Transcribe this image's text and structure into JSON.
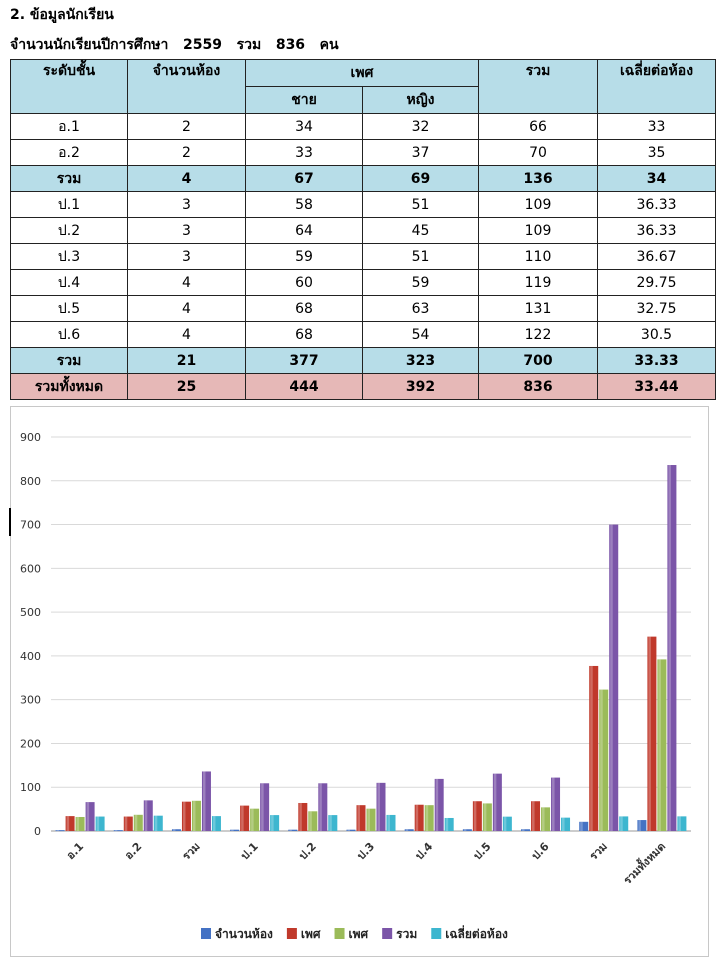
{
  "heading": "2. ข้อมูลนักเรียน",
  "subheading": "จำนวนนักเรียนปีการศึกษา   2559   รวม   836   คน",
  "table": {
    "headers": {
      "level": "ระดับชั้น",
      "rooms": "จำนวนห้อง",
      "gender": "เพศ",
      "male": "ชาย",
      "female": "หญิง",
      "total": "รวม",
      "avg": "เฉลี่ยต่อห้อง"
    },
    "rows": [
      {
        "level": "อ.1",
        "rooms": "2",
        "male": "34",
        "female": "32",
        "total": "66",
        "avg": "33"
      },
      {
        "level": "อ.2",
        "rooms": "2",
        "male": "33",
        "female": "37",
        "total": "70",
        "avg": "35"
      },
      {
        "level": "รวม",
        "rooms": "4",
        "male": "67",
        "female": "69",
        "total": "136",
        "avg": "34"
      },
      {
        "level": "ป.1",
        "rooms": "3",
        "male": "58",
        "female": "51",
        "total": "109",
        "avg": "36.33"
      },
      {
        "level": "ป.2",
        "rooms": "3",
        "male": "64",
        "female": "45",
        "total": "109",
        "avg": "36.33"
      },
      {
        "level": "ป.3",
        "rooms": "3",
        "male": "59",
        "female": "51",
        "total": "110",
        "avg": "36.67"
      },
      {
        "level": "ป.4",
        "rooms": "4",
        "male": "60",
        "female": "59",
        "total": "119",
        "avg": "29.75"
      },
      {
        "level": "ป.5",
        "rooms": "4",
        "male": "68",
        "female": "63",
        "total": "131",
        "avg": "32.75"
      },
      {
        "level": "ป.6",
        "rooms": "4",
        "male": "68",
        "female": "54",
        "total": "122",
        "avg": "30.5"
      },
      {
        "level": "รวม",
        "rooms": "21",
        "male": "377",
        "female": "323",
        "total": "700",
        "avg": "33.33"
      },
      {
        "level": "รวมทั้งหมด",
        "rooms": "25",
        "male": "444",
        "female": "392",
        "total": "836",
        "avg": "33.44"
      }
    ]
  },
  "chart_data": {
    "type": "bar",
    "categories": [
      "อ.1",
      "อ.2",
      "รวม",
      "ป.1",
      "ป.2",
      "ป.3",
      "ป.4",
      "ป.5",
      "ป.6",
      "รวม",
      "รวมทั้งหมด"
    ],
    "series": [
      {
        "name": "จำนวนห้อง",
        "color": "#4472c4",
        "values": [
          2,
          2,
          4,
          3,
          3,
          3,
          4,
          4,
          4,
          21,
          25
        ]
      },
      {
        "name": "เพศ",
        "color": "#c0392b",
        "values": [
          34,
          33,
          67,
          58,
          64,
          59,
          60,
          68,
          68,
          377,
          444
        ]
      },
      {
        "name": "เพศ",
        "color": "#9bbb59",
        "values": [
          32,
          37,
          69,
          51,
          45,
          51,
          59,
          63,
          54,
          323,
          392
        ]
      },
      {
        "name": "รวม",
        "color": "#7b55a8",
        "values": [
          66,
          70,
          136,
          109,
          109,
          110,
          119,
          131,
          122,
          700,
          836
        ]
      },
      {
        "name": "เฉลี่ยต่อห้อง",
        "color": "#3db6cf",
        "values": [
          33,
          35,
          34,
          36.33,
          36.33,
          36.67,
          29.75,
          32.75,
          30.5,
          33.33,
          33.44
        ]
      }
    ],
    "yticks": [
      0,
      100,
      200,
      300,
      400,
      500,
      600,
      700,
      800,
      900
    ],
    "ylim": [
      0,
      900
    ],
    "grid": true,
    "legend": "bottom"
  }
}
